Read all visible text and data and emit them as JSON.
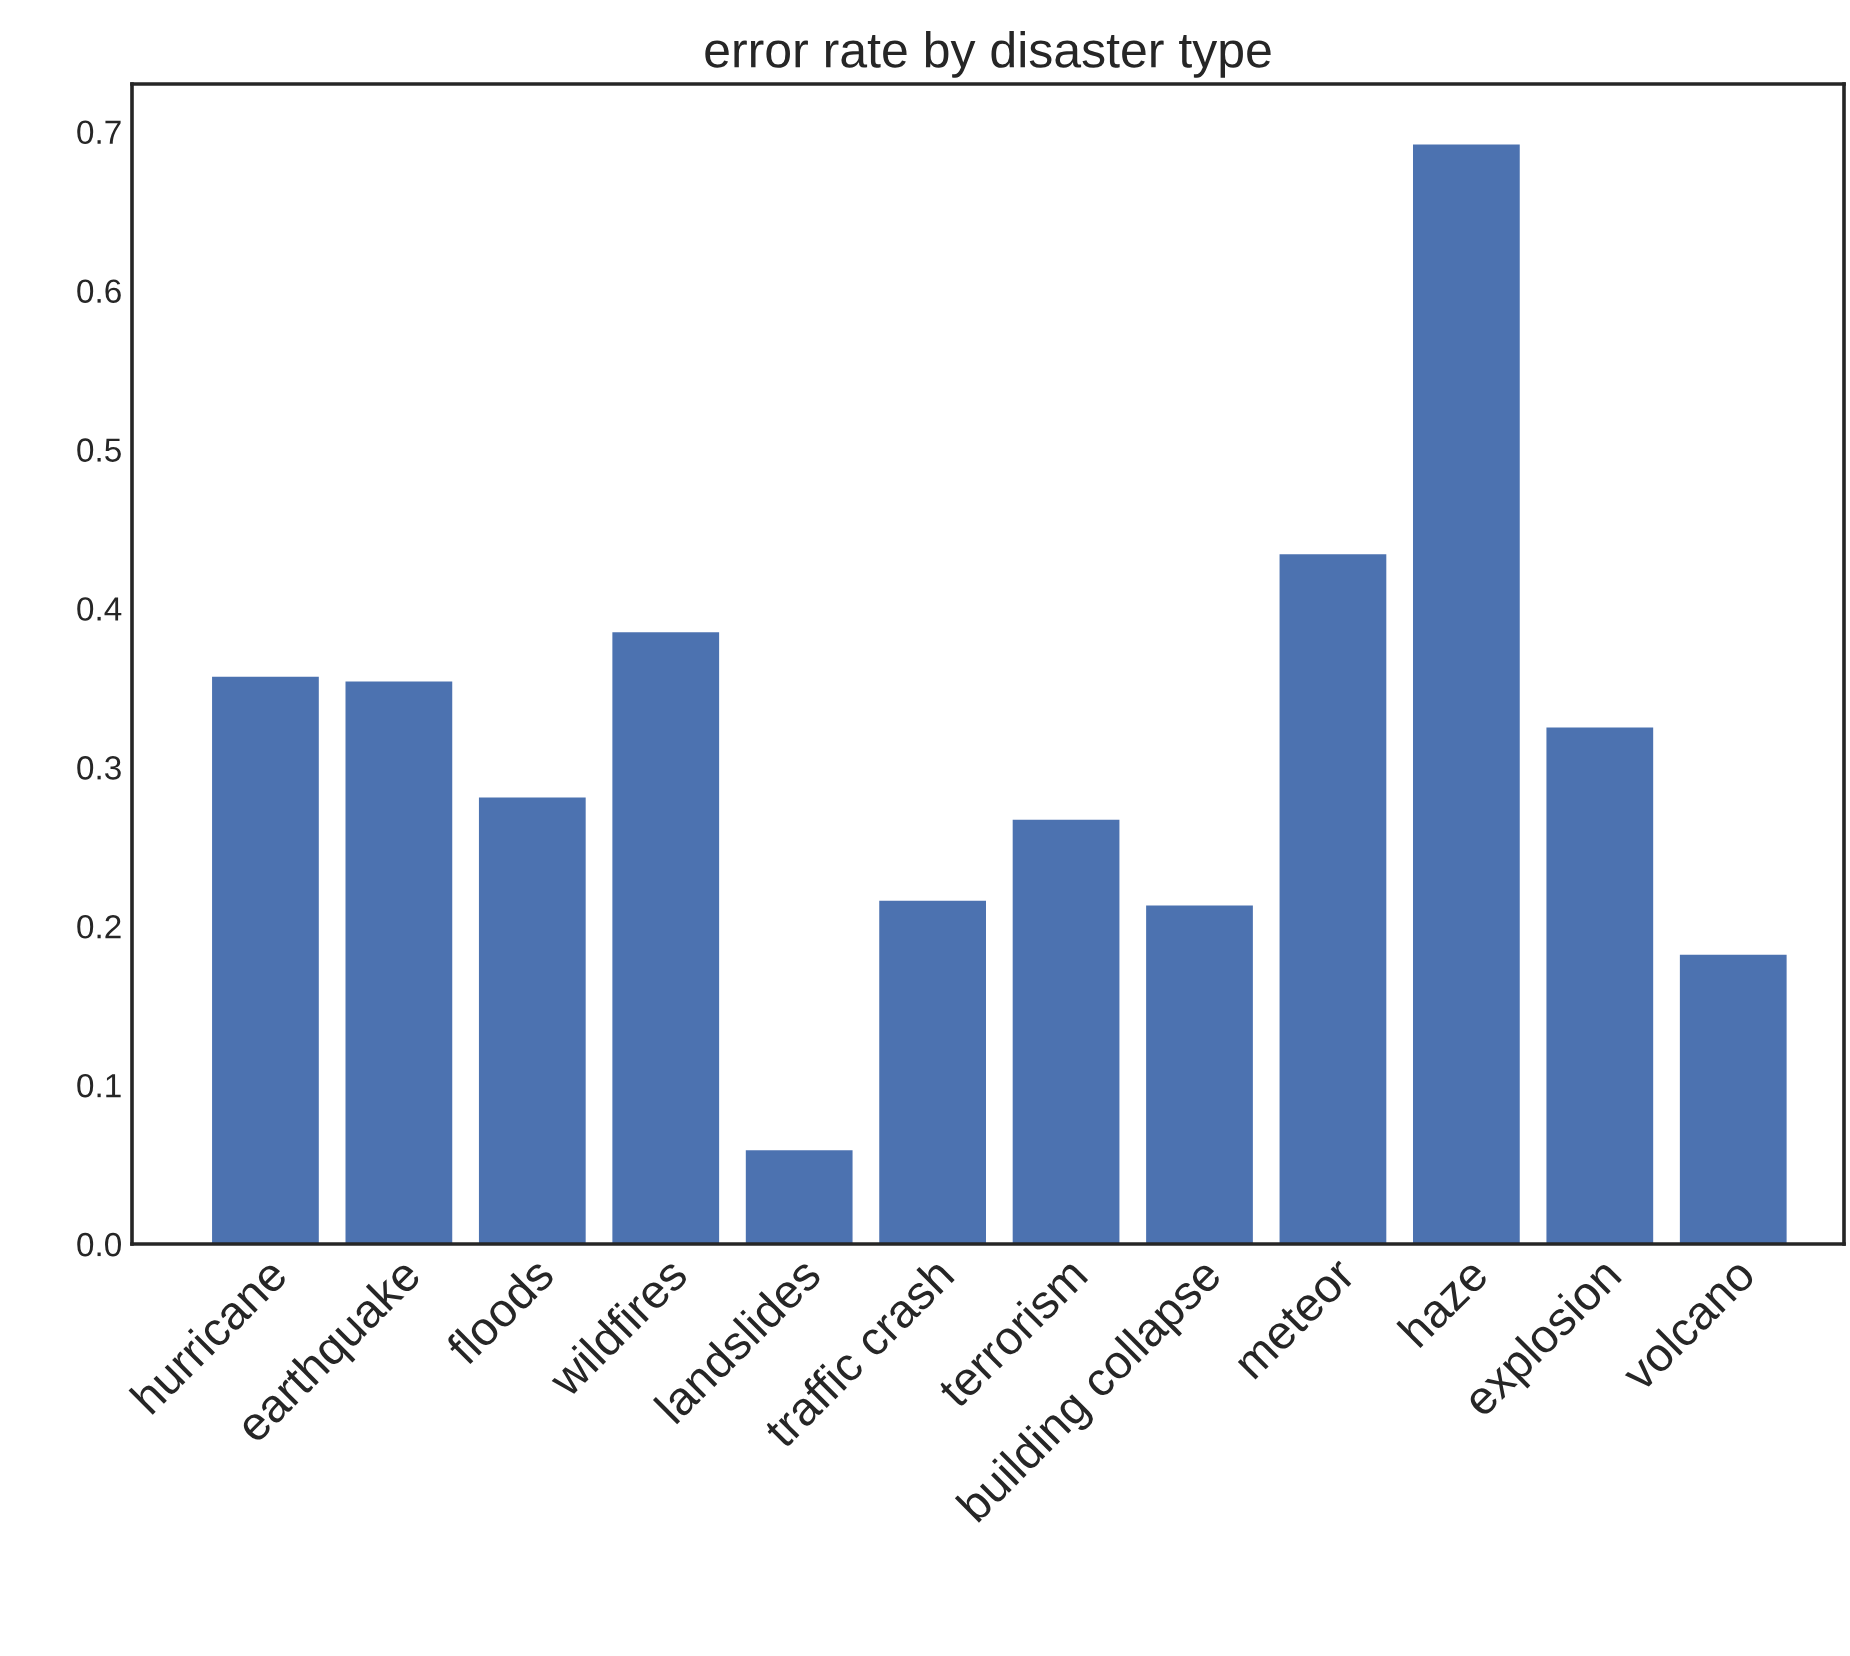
{
  "chart_data": {
    "type": "bar",
    "title": "error rate by disaster type",
    "categories": [
      "hurricane",
      "earthquake",
      "floods",
      "wildfires",
      "landslides",
      "traffic crash",
      "terrorism",
      "building collapse",
      "meteor",
      "haze",
      "explosion",
      "volcano"
    ],
    "values": [
      0.357,
      0.354,
      0.281,
      0.385,
      0.059,
      0.216,
      0.267,
      0.213,
      0.434,
      0.692,
      0.325,
      0.182
    ],
    "color": "#4c72b0",
    "ylim": [
      0,
      0.73
    ],
    "yticks": [
      {
        "value": 0,
        "label": "0.0"
      },
      0.1,
      0.2,
      0.3,
      0.4,
      0.5,
      0.6,
      0.7
    ],
    "grid": false
  }
}
